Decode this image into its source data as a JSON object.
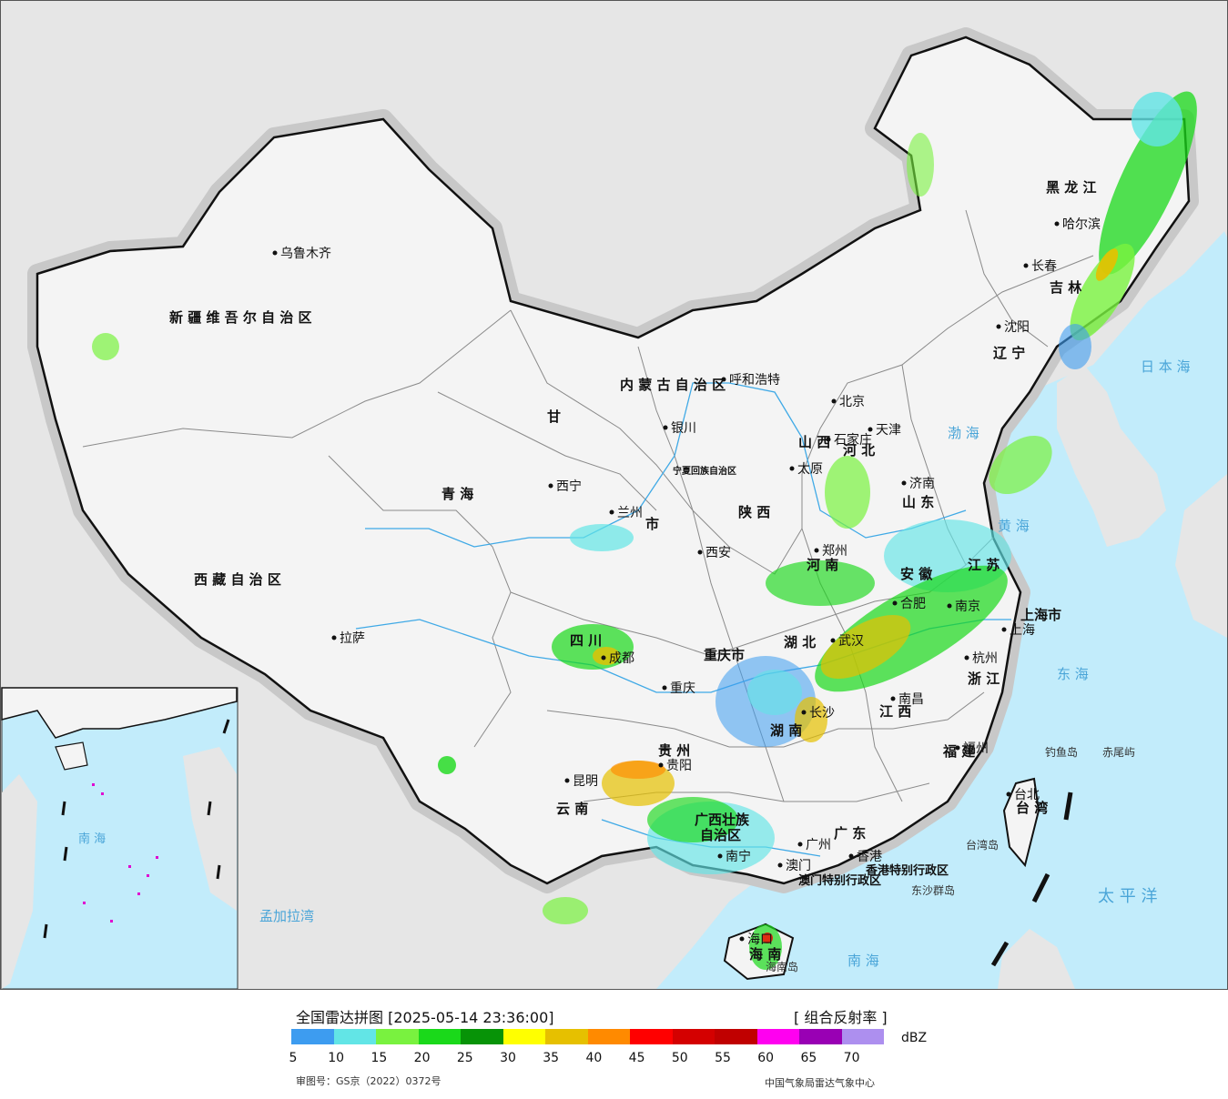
{
  "colors": {
    "sea": "#c2ecfb",
    "foreign_land": "#e6e6e6",
    "china_land": "#f4f4f4",
    "border": "#111111",
    "province_line": "#8a8a8a",
    "river": "#3fa9e6",
    "scale": [
      "#3d9cf0",
      "#62e5e6",
      "#79f23f",
      "#1ad91a",
      "#079307",
      "#ffff00",
      "#e6c000",
      "#ff8a00",
      "#ff0000",
      "#d40000",
      "#c00000",
      "#ff00f0",
      "#9900b4",
      "#ad8fef"
    ]
  },
  "legend": {
    "title": "全国雷达拼图 [2025-05-14 23:36:00]",
    "product": "[ 组合反射率 ]",
    "unit": "dBZ",
    "ticks": [
      "5",
      "10",
      "15",
      "20",
      "25",
      "30",
      "35",
      "40",
      "45",
      "50",
      "55",
      "60",
      "65",
      "70"
    ],
    "approval": "审图号：GS京（2022）0372号",
    "center": "中国气象局雷达气象中心"
  },
  "regions": [
    {
      "key": "xinjiang",
      "text": "新 疆 维 吾 尔 自 治 区"
    },
    {
      "key": "xizang",
      "text": "西 藏 自 治 区"
    },
    {
      "key": "qinghai",
      "text": "青 海"
    },
    {
      "key": "gansu",
      "text": "甘"
    },
    {
      "key": "sichuan",
      "text": "四 川"
    },
    {
      "key": "yunnan",
      "text": "云 南"
    },
    {
      "key": "guizhou",
      "text": "贵 州"
    },
    {
      "key": "guangxi",
      "text": "广西壮族"
    },
    {
      "key": "guangxi2",
      "text": "自治区"
    },
    {
      "key": "guangdong",
      "text": "广 东"
    },
    {
      "key": "hunan",
      "text": "湖 南"
    },
    {
      "key": "hubei",
      "text": "湖 北"
    },
    {
      "key": "jiangxi",
      "text": "江 西"
    },
    {
      "key": "fujian",
      "text": "福 建"
    },
    {
      "key": "zhejiang",
      "text": "浙 江"
    },
    {
      "key": "anhui",
      "text": "安 徽"
    },
    {
      "key": "jiangsu",
      "text": "江 苏"
    },
    {
      "key": "shandong",
      "text": "山 东"
    },
    {
      "key": "henan",
      "text": "河 南"
    },
    {
      "key": "shanxi",
      "text": "山 西"
    },
    {
      "key": "hebei",
      "text": "河 北"
    },
    {
      "key": "shaanxi",
      "text": "陕 西"
    },
    {
      "key": "neimenggu",
      "text": "内 蒙 古 自 治 区"
    },
    {
      "key": "heilongjiang",
      "text": "黑 龙 江"
    },
    {
      "key": "jilin",
      "text": "吉 林"
    },
    {
      "key": "liaoning",
      "text": "辽 宁"
    },
    {
      "key": "chongqing",
      "text": "重庆市"
    },
    {
      "key": "shanghai",
      "text": "上海市"
    },
    {
      "key": "taiwan",
      "text": "台 湾"
    },
    {
      "key": "hainan",
      "text": "海 南"
    },
    {
      "key": "hk",
      "text": "香港特别行政区"
    },
    {
      "key": "macao",
      "text": "澳门特别行政区"
    },
    {
      "key": "ningxia",
      "text": "宁夏回族自治区"
    },
    {
      "key": "gansu_city",
      "text": "市"
    }
  ],
  "cities": [
    {
      "key": "urumqi",
      "text": "乌鲁木齐"
    },
    {
      "key": "lhasa",
      "text": "拉萨"
    },
    {
      "key": "xining",
      "text": "西宁"
    },
    {
      "key": "lanzhou",
      "text": "兰州"
    },
    {
      "key": "yinchuan",
      "text": "银川"
    },
    {
      "key": "hohhot",
      "text": "呼和浩特"
    },
    {
      "key": "beijing",
      "text": "北京"
    },
    {
      "key": "tianjin",
      "text": "天津"
    },
    {
      "key": "shijiazhuang",
      "text": "石家庄"
    },
    {
      "key": "taiyuan",
      "text": "太原"
    },
    {
      "key": "jinan",
      "text": "济南"
    },
    {
      "key": "zhengzhou",
      "text": "郑州"
    },
    {
      "key": "xian",
      "text": "西安"
    },
    {
      "key": "chengdu",
      "text": "成都"
    },
    {
      "key": "chongqing_c",
      "text": "重庆"
    },
    {
      "key": "guiyang",
      "text": "贵阳"
    },
    {
      "key": "kunming",
      "text": "昆明"
    },
    {
      "key": "nanning",
      "text": "南宁"
    },
    {
      "key": "guangzhou",
      "text": "广州"
    },
    {
      "key": "hongkong",
      "text": "香港"
    },
    {
      "key": "macau",
      "text": "澳门"
    },
    {
      "key": "changsha",
      "text": "长沙"
    },
    {
      "key": "wuhan",
      "text": "武汉"
    },
    {
      "key": "nanchang",
      "text": "南昌"
    },
    {
      "key": "fuzhou",
      "text": "福州"
    },
    {
      "key": "hangzhou",
      "text": "杭州"
    },
    {
      "key": "hefei",
      "text": "合肥"
    },
    {
      "key": "nanjing",
      "text": "南京"
    },
    {
      "key": "shanghai_c",
      "text": "上海"
    },
    {
      "key": "shenyang",
      "text": "沈阳"
    },
    {
      "key": "changchun",
      "text": "长春"
    },
    {
      "key": "harbin",
      "text": "哈尔滨"
    },
    {
      "key": "taibei",
      "text": "台北"
    },
    {
      "key": "haikou",
      "text": "海口"
    }
  ],
  "seas": [
    {
      "key": "sea_japan",
      "text": "日 本 海"
    },
    {
      "key": "bohai",
      "text": "渤 海"
    },
    {
      "key": "yellow",
      "text": "黄 海"
    },
    {
      "key": "east",
      "text": "东 海"
    },
    {
      "key": "pacific",
      "text": "太 平 洋"
    },
    {
      "key": "south",
      "text": "南 海"
    },
    {
      "key": "bengal",
      "text": "孟加拉湾"
    },
    {
      "key": "diaoyu",
      "text": "钓鱼岛"
    },
    {
      "key": "chiwei",
      "text": "赤尾屿"
    },
    {
      "key": "taiwan_isl",
      "text": "台湾岛"
    },
    {
      "key": "dongsha",
      "text": "东沙群岛"
    },
    {
      "key": "hainan_isl",
      "text": "海南岛"
    },
    {
      "key": "inset_south",
      "text": "南 海"
    }
  ]
}
